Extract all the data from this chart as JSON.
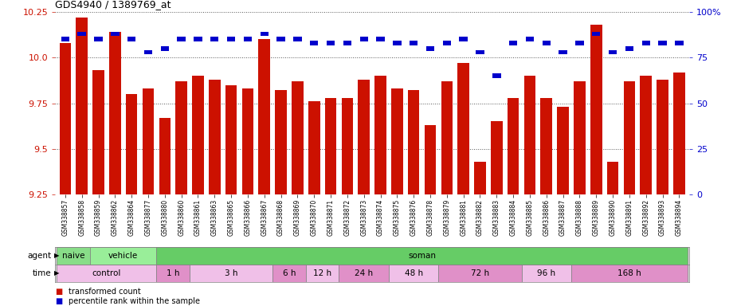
{
  "title": "GDS4940 / 1389769_at",
  "samples": [
    "GSM338857",
    "GSM338858",
    "GSM338859",
    "GSM338862",
    "GSM338864",
    "GSM338877",
    "GSM338880",
    "GSM338860",
    "GSM338861",
    "GSM338863",
    "GSM338865",
    "GSM338866",
    "GSM338867",
    "GSM338868",
    "GSM338869",
    "GSM338870",
    "GSM338871",
    "GSM338872",
    "GSM338873",
    "GSM338874",
    "GSM338875",
    "GSM338876",
    "GSM338878",
    "GSM338879",
    "GSM338881",
    "GSM338882",
    "GSM338883",
    "GSM338884",
    "GSM338885",
    "GSM338886",
    "GSM338887",
    "GSM338888",
    "GSM338889",
    "GSM338890",
    "GSM338891",
    "GSM338892",
    "GSM338893",
    "GSM338894"
  ],
  "bar_values": [
    10.08,
    10.22,
    9.93,
    10.14,
    9.8,
    9.83,
    9.67,
    9.87,
    9.9,
    9.88,
    9.85,
    9.83,
    10.1,
    9.82,
    9.87,
    9.76,
    9.78,
    9.78,
    9.88,
    9.9,
    9.83,
    9.82,
    9.63,
    9.87,
    9.97,
    9.43,
    9.65,
    9.78,
    9.9,
    9.78,
    9.73,
    9.87,
    10.18,
    9.43,
    9.87,
    9.9,
    9.88,
    9.92
  ],
  "percentile_values": [
    85,
    88,
    85,
    88,
    85,
    78,
    80,
    85,
    85,
    85,
    85,
    85,
    88,
    85,
    85,
    83,
    83,
    83,
    85,
    85,
    83,
    83,
    80,
    83,
    85,
    78,
    65,
    83,
    85,
    83,
    78,
    83,
    88,
    78,
    80,
    83,
    83,
    83
  ],
  "ylim": [
    9.25,
    10.25
  ],
  "yticks": [
    9.25,
    9.5,
    9.75,
    10.0,
    10.25
  ],
  "right_yticks": [
    0,
    25,
    50,
    75,
    100
  ],
  "bar_color": "#cc1100",
  "percentile_color": "#0000cc",
  "agent_groups": [
    {
      "label": "naive",
      "start": 0,
      "end": 2,
      "color": "#88dd88"
    },
    {
      "label": "vehicle",
      "start": 2,
      "end": 6,
      "color": "#99ee99"
    },
    {
      "label": "soman",
      "start": 6,
      "end": 38,
      "color": "#66cc66"
    }
  ],
  "time_groups": [
    {
      "label": "control",
      "start": 0,
      "end": 6,
      "color": "#f0c0e8"
    },
    {
      "label": "1 h",
      "start": 6,
      "end": 8,
      "color": "#e090c8"
    },
    {
      "label": "3 h",
      "start": 8,
      "end": 13,
      "color": "#f0c0e8"
    },
    {
      "label": "6 h",
      "start": 13,
      "end": 15,
      "color": "#e090c8"
    },
    {
      "label": "12 h",
      "start": 15,
      "end": 17,
      "color": "#f0c0e8"
    },
    {
      "label": "24 h",
      "start": 17,
      "end": 20,
      "color": "#e090c8"
    },
    {
      "label": "48 h",
      "start": 20,
      "end": 23,
      "color": "#f0c0e8"
    },
    {
      "label": "72 h",
      "start": 23,
      "end": 28,
      "color": "#e090c8"
    },
    {
      "label": "96 h",
      "start": 28,
      "end": 31,
      "color": "#f0c0e8"
    },
    {
      "label": "168 h",
      "start": 31,
      "end": 38,
      "color": "#e090c8"
    }
  ],
  "legend_items": [
    {
      "label": "transformed count",
      "color": "#cc1100"
    },
    {
      "label": "percentile rank within the sample",
      "color": "#0000cc"
    }
  ]
}
